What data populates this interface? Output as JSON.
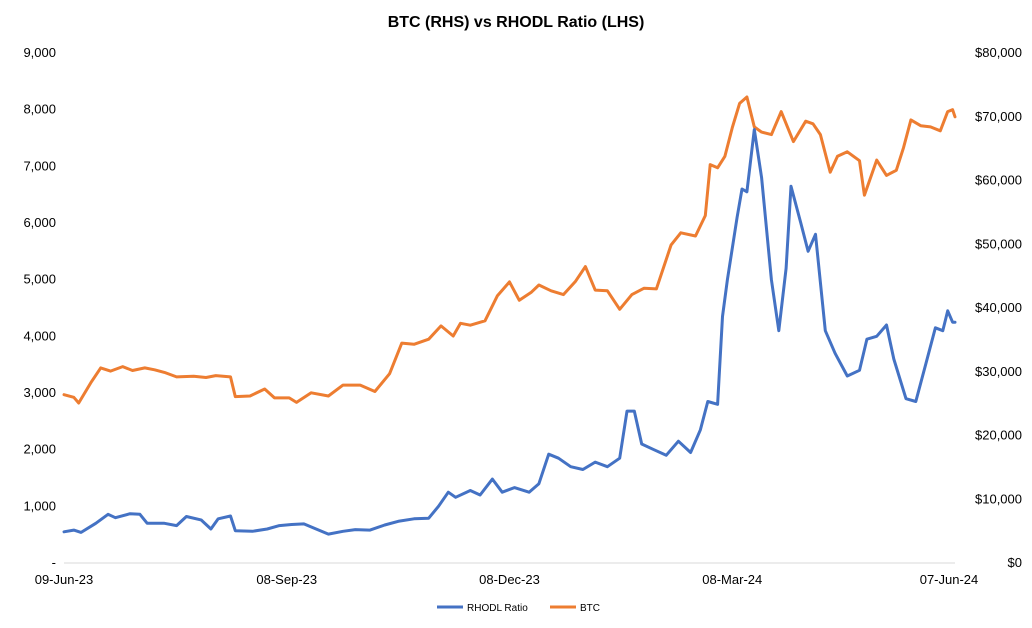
{
  "chart_data": {
    "type": "line",
    "title": "BTC (RHS) vs RHODL Ratio (LHS)",
    "colors": {
      "RHODL Ratio": "#4472C4",
      "BTC": "#ED7D31"
    },
    "x_tick_labels": [
      "09-Jun-23",
      "08-Sep-23",
      "08-Dec-23",
      "08-Mar-24",
      "07-Jun-24"
    ],
    "x_range": [
      "2023-06-09",
      "2024-06-07"
    ],
    "y_left": {
      "range": [
        0,
        9000
      ],
      "tick_labels": [
        "-",
        "1,000",
        "2,000",
        "3,000",
        "4,000",
        "5,000",
        "6,000",
        "7,000",
        "8,000",
        "9,000"
      ]
    },
    "y_right": {
      "range": [
        0,
        80000
      ],
      "tick_labels": [
        "$0",
        "$10,000",
        "$20,000",
        "$30,000",
        "$40,000",
        "$50,000",
        "$60,000",
        "$70,000",
        "$80,000"
      ]
    },
    "grid": false,
    "legend_position": "bottom",
    "series": [
      {
        "name": "RHODL Ratio",
        "axis": "left",
        "points": [
          [
            "2023-06-09",
            550
          ],
          [
            "2023-06-13",
            580
          ],
          [
            "2023-06-16",
            540
          ],
          [
            "2023-06-22",
            700
          ],
          [
            "2023-06-27",
            860
          ],
          [
            "2023-06-30",
            800
          ],
          [
            "2023-07-06",
            870
          ],
          [
            "2023-07-10",
            860
          ],
          [
            "2023-07-13",
            700
          ],
          [
            "2023-07-20",
            700
          ],
          [
            "2023-07-25",
            660
          ],
          [
            "2023-07-29",
            820
          ],
          [
            "2023-08-04",
            760
          ],
          [
            "2023-08-08",
            600
          ],
          [
            "2023-08-11",
            780
          ],
          [
            "2023-08-16",
            830
          ],
          [
            "2023-08-18",
            570
          ],
          [
            "2023-08-25",
            560
          ],
          [
            "2023-08-31",
            600
          ],
          [
            "2023-09-05",
            660
          ],
          [
            "2023-09-10",
            680
          ],
          [
            "2023-09-15",
            690
          ],
          [
            "2023-09-20",
            600
          ],
          [
            "2023-09-25",
            510
          ],
          [
            "2023-10-01",
            560
          ],
          [
            "2023-10-06",
            590
          ],
          [
            "2023-10-12",
            580
          ],
          [
            "2023-10-18",
            670
          ],
          [
            "2023-10-24",
            740
          ],
          [
            "2023-10-30",
            780
          ],
          [
            "2023-11-05",
            790
          ],
          [
            "2023-11-09",
            1000
          ],
          [
            "2023-11-13",
            1250
          ],
          [
            "2023-11-16",
            1160
          ],
          [
            "2023-11-22",
            1280
          ],
          [
            "2023-11-26",
            1200
          ],
          [
            "2023-12-01",
            1480
          ],
          [
            "2023-12-05",
            1250
          ],
          [
            "2023-12-10",
            1330
          ],
          [
            "2023-12-16",
            1250
          ],
          [
            "2023-12-20",
            1400
          ],
          [
            "2023-12-24",
            1920
          ],
          [
            "2023-12-28",
            1850
          ],
          [
            "2024-01-02",
            1700
          ],
          [
            "2024-01-07",
            1650
          ],
          [
            "2024-01-12",
            1780
          ],
          [
            "2024-01-17",
            1700
          ],
          [
            "2024-01-22",
            1850
          ],
          [
            "2024-01-25",
            2680
          ],
          [
            "2024-01-28",
            2680
          ],
          [
            "2024-01-31",
            2100
          ],
          [
            "2024-02-05",
            2000
          ],
          [
            "2024-02-10",
            1900
          ],
          [
            "2024-02-15",
            2150
          ],
          [
            "2024-02-20",
            1950
          ],
          [
            "2024-02-24",
            2350
          ],
          [
            "2024-02-27",
            2850
          ],
          [
            "2024-03-02",
            2800
          ],
          [
            "2024-03-04",
            4350
          ],
          [
            "2024-03-06",
            5000
          ],
          [
            "2024-03-10",
            6100
          ],
          [
            "2024-03-12",
            6600
          ],
          [
            "2024-03-14",
            6550
          ],
          [
            "2024-03-17",
            7650
          ],
          [
            "2024-03-20",
            6800
          ],
          [
            "2024-03-24",
            5000
          ],
          [
            "2024-03-27",
            4100
          ],
          [
            "2024-03-30",
            5200
          ],
          [
            "2024-04-01",
            6650
          ],
          [
            "2024-04-05",
            6000
          ],
          [
            "2024-04-08",
            5500
          ],
          [
            "2024-04-11",
            5800
          ],
          [
            "2024-04-15",
            4100
          ],
          [
            "2024-04-19",
            3700
          ],
          [
            "2024-04-24",
            3300
          ],
          [
            "2024-04-29",
            3400
          ],
          [
            "2024-05-02",
            3950
          ],
          [
            "2024-05-06",
            4000
          ],
          [
            "2024-05-10",
            4200
          ],
          [
            "2024-05-13",
            3600
          ],
          [
            "2024-05-18",
            2900
          ],
          [
            "2024-05-22",
            2850
          ],
          [
            "2024-05-26",
            3500
          ],
          [
            "2024-05-30",
            4150
          ],
          [
            "2024-06-02",
            4100
          ],
          [
            "2024-06-04",
            4450
          ],
          [
            "2024-06-06",
            4250
          ],
          [
            "2024-06-07",
            4250
          ]
        ]
      },
      {
        "name": "BTC",
        "axis": "right",
        "points": [
          [
            "2023-06-09",
            26400
          ],
          [
            "2023-06-13",
            26000
          ],
          [
            "2023-06-15",
            25100
          ],
          [
            "2023-06-20",
            28300
          ],
          [
            "2023-06-24",
            30600
          ],
          [
            "2023-06-28",
            30100
          ],
          [
            "2023-07-03",
            30800
          ],
          [
            "2023-07-07",
            30200
          ],
          [
            "2023-07-12",
            30600
          ],
          [
            "2023-07-16",
            30300
          ],
          [
            "2023-07-20",
            29900
          ],
          [
            "2023-07-25",
            29200
          ],
          [
            "2023-08-01",
            29300
          ],
          [
            "2023-08-06",
            29100
          ],
          [
            "2023-08-10",
            29400
          ],
          [
            "2023-08-16",
            29200
          ],
          [
            "2023-08-18",
            26100
          ],
          [
            "2023-08-24",
            26200
          ],
          [
            "2023-08-30",
            27300
          ],
          [
            "2023-09-03",
            25900
          ],
          [
            "2023-09-09",
            25900
          ],
          [
            "2023-09-12",
            25200
          ],
          [
            "2023-09-18",
            26700
          ],
          [
            "2023-09-25",
            26200
          ],
          [
            "2023-10-01",
            27900
          ],
          [
            "2023-10-08",
            27900
          ],
          [
            "2023-10-14",
            26900
          ],
          [
            "2023-10-20",
            29700
          ],
          [
            "2023-10-25",
            34500
          ],
          [
            "2023-10-30",
            34300
          ],
          [
            "2023-11-05",
            35100
          ],
          [
            "2023-11-10",
            37200
          ],
          [
            "2023-11-15",
            35600
          ],
          [
            "2023-11-18",
            37600
          ],
          [
            "2023-11-22",
            37300
          ],
          [
            "2023-11-28",
            38000
          ],
          [
            "2023-12-03",
            41900
          ],
          [
            "2023-12-08",
            44100
          ],
          [
            "2023-12-12",
            41200
          ],
          [
            "2023-12-17",
            42500
          ],
          [
            "2023-12-20",
            43600
          ],
          [
            "2023-12-25",
            42700
          ],
          [
            "2023-12-30",
            42100
          ],
          [
            "2024-01-04",
            44200
          ],
          [
            "2024-01-08",
            46500
          ],
          [
            "2024-01-12",
            42800
          ],
          [
            "2024-01-17",
            42700
          ],
          [
            "2024-01-22",
            39800
          ],
          [
            "2024-01-27",
            42100
          ],
          [
            "2024-02-01",
            43100
          ],
          [
            "2024-02-06",
            43000
          ],
          [
            "2024-02-12",
            49900
          ],
          [
            "2024-02-16",
            51800
          ],
          [
            "2024-02-22",
            51300
          ],
          [
            "2024-02-26",
            54500
          ],
          [
            "2024-02-28",
            62500
          ],
          [
            "2024-03-02",
            62000
          ],
          [
            "2024-03-05",
            63800
          ],
          [
            "2024-03-08",
            68300
          ],
          [
            "2024-03-11",
            72100
          ],
          [
            "2024-03-14",
            73100
          ],
          [
            "2024-03-17",
            68400
          ],
          [
            "2024-03-20",
            67600
          ],
          [
            "2024-03-24",
            67200
          ],
          [
            "2024-03-28",
            70800
          ],
          [
            "2024-04-02",
            66100
          ],
          [
            "2024-04-07",
            69300
          ],
          [
            "2024-04-10",
            68900
          ],
          [
            "2024-04-13",
            67200
          ],
          [
            "2024-04-17",
            61300
          ],
          [
            "2024-04-20",
            63800
          ],
          [
            "2024-04-24",
            64500
          ],
          [
            "2024-04-29",
            63100
          ],
          [
            "2024-05-01",
            57700
          ],
          [
            "2024-05-06",
            63200
          ],
          [
            "2024-05-10",
            60800
          ],
          [
            "2024-05-14",
            61600
          ],
          [
            "2024-05-17",
            65200
          ],
          [
            "2024-05-20",
            69500
          ],
          [
            "2024-05-24",
            68600
          ],
          [
            "2024-05-28",
            68400
          ],
          [
            "2024-06-01",
            67800
          ],
          [
            "2024-06-04",
            70800
          ],
          [
            "2024-06-06",
            71100
          ],
          [
            "2024-06-07",
            70000
          ]
        ]
      }
    ]
  }
}
